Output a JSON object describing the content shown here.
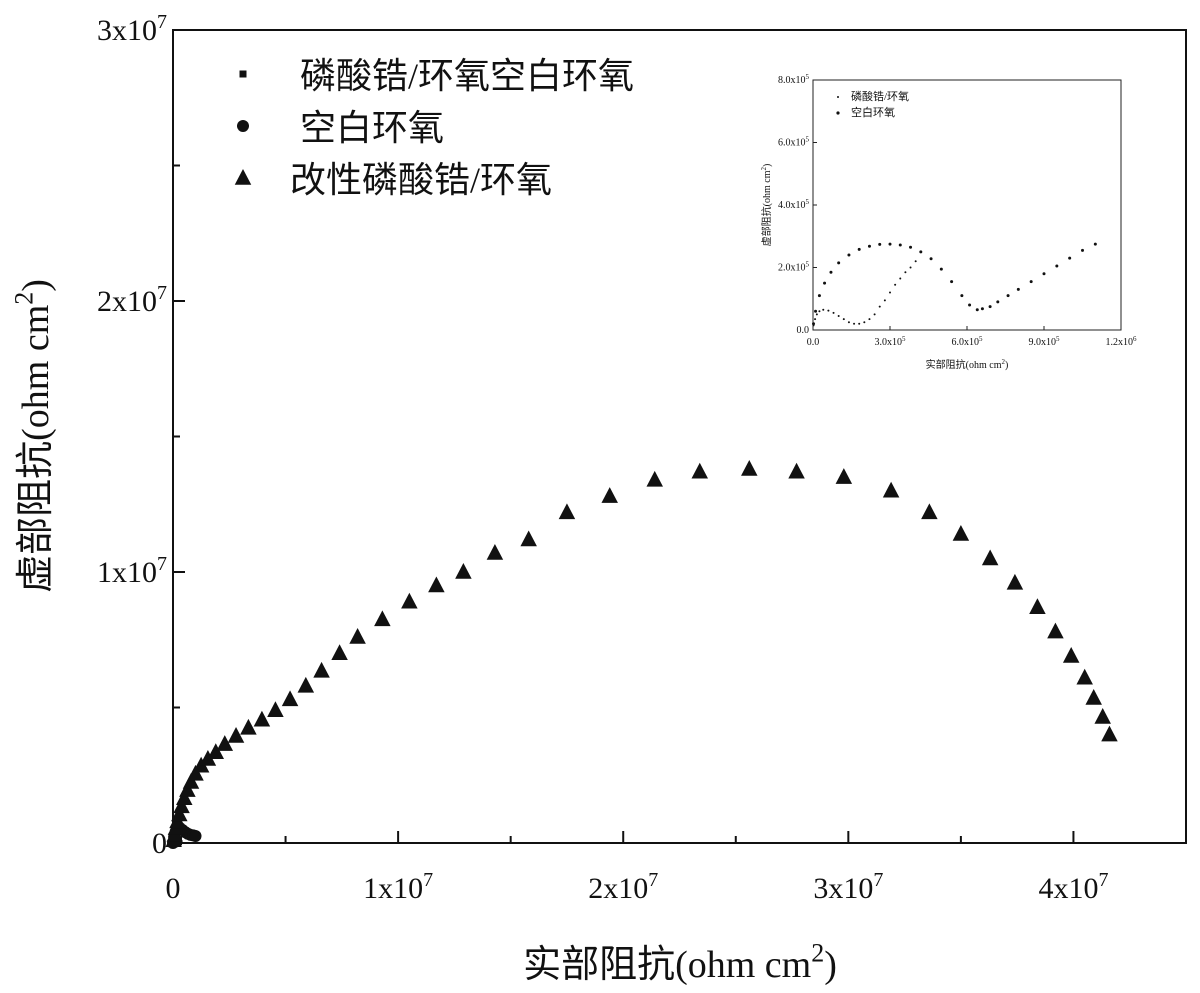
{
  "chart_data": [
    {
      "type": "scatter",
      "title": "",
      "xlabel": "实部阻抗(ohm cm2)",
      "ylabel": "虚部阻抗(ohm cm2)",
      "xlim": [
        0,
        45000000
      ],
      "ylim": [
        0,
        30000000
      ],
      "x_ticks": [
        0,
        10000000,
        20000000,
        30000000,
        40000000
      ],
      "x_tick_labels": [
        "0",
        "1x107",
        "2x107",
        "3x107",
        "4x107"
      ],
      "y_ticks": [
        0,
        10000000,
        20000000,
        30000000
      ],
      "y_tick_labels": [
        "0",
        "1x107",
        "2x107",
        "3x107"
      ],
      "grid": false,
      "legend_position": "top-left",
      "series": [
        {
          "name": "磷酸锆/环氧空白环氧",
          "marker": "square",
          "x": [
            0,
            20000,
            50000,
            100000,
            150000,
            200000
          ],
          "y": [
            0,
            100000,
            150000,
            150000,
            100000,
            80000
          ]
        },
        {
          "name": "空白环氧",
          "marker": "circle",
          "x": [
            0,
            50000,
            120000,
            200000,
            300000,
            420000,
            540000,
            660000,
            780000,
            900000,
            1000000
          ],
          "y": [
            0,
            220000,
            420000,
            560000,
            560000,
            480000,
            400000,
            340000,
            300000,
            280000,
            260000
          ]
        },
        {
          "name": "改性磷酸锆/环氧",
          "marker": "triangle",
          "x": [
            30000,
            80000,
            130000,
            200000,
            280000,
            380000,
            500000,
            640000,
            800000,
            1000000,
            1250000,
            1550000,
            1900000,
            2300000,
            2800000,
            3350000,
            3950000,
            4550000,
            5200000,
            5900000,
            6600000,
            7400000,
            8200000,
            9300000,
            10500000,
            11700000,
            12900000,
            14300000,
            15800000,
            17500000,
            19400000,
            21400000,
            23400000,
            25600000,
            27700000,
            29800000,
            31900000,
            33600000,
            35000000,
            36300000,
            37400000,
            38400000,
            39200000,
            39900000,
            40500000,
            40900000,
            41300000,
            41600000
          ],
          "y": [
            100000,
            300000,
            550000,
            800000,
            1050000,
            1350000,
            1650000,
            1950000,
            2250000,
            2550000,
            2850000,
            3100000,
            3350000,
            3650000,
            3950000,
            4250000,
            4550000,
            4900000,
            5300000,
            5800000,
            6350000,
            7000000,
            7600000,
            8250000,
            8900000,
            9500000,
            10000000,
            10700000,
            11200000,
            12200000,
            12800000,
            13400000,
            13700000,
            13800000,
            13700000,
            13500000,
            13000000,
            12200000,
            11400000,
            10500000,
            9600000,
            8700000,
            7800000,
            6900000,
            6100000,
            5350000,
            4650000,
            4000000
          ]
        }
      ]
    },
    {
      "type": "scatter",
      "title": "",
      "xlabel": "实部阻抗(ohm cm2)",
      "ylabel": "虚部阻抗(ohm cm2)",
      "xlim": [
        0,
        1200000
      ],
      "ylim": [
        0,
        800000
      ],
      "x_ticks": [
        0,
        300000,
        600000,
        900000,
        1200000
      ],
      "x_tick_labels": [
        "0.0",
        "3.0x105",
        "6.0x105",
        "9.0x105",
        "1.2x106"
      ],
      "y_ticks": [
        0,
        200000,
        400000,
        600000,
        800000
      ],
      "y_tick_labels": [
        "0.0",
        "2.0x105",
        "4.0x105",
        "6.0x105",
        "8.0x105"
      ],
      "grid": false,
      "legend_position": "top-left",
      "series": [
        {
          "name": "磷酸锆/环氧",
          "marker": "dot",
          "x": [
            2000,
            8000,
            15000,
            25000,
            40000,
            60000,
            80000,
            100000,
            120000,
            140000,
            160000,
            180000,
            200000,
            220000,
            240000,
            260000,
            280000,
            300000,
            320000,
            340000,
            360000,
            380000,
            400000
          ],
          "y": [
            15000,
            35000,
            50000,
            60000,
            65000,
            62000,
            55000,
            45000,
            35000,
            25000,
            20000,
            20000,
            25000,
            35000,
            50000,
            75000,
            95000,
            120000,
            145000,
            165000,
            185000,
            200000,
            220000
          ]
        },
        {
          "name": "空白环氧",
          "marker": "dot",
          "x": [
            2000,
            10000,
            25000,
            45000,
            70000,
            100000,
            140000,
            180000,
            220000,
            260000,
            300000,
            340000,
            380000,
            420000,
            460000,
            500000,
            540000,
            580000,
            610000,
            640000,
            660000,
            690000,
            720000,
            760000,
            800000,
            850000,
            900000,
            950000,
            1000000,
            1050000,
            1100000
          ],
          "y": [
            20000,
            60000,
            110000,
            150000,
            185000,
            215000,
            240000,
            258000,
            268000,
            274000,
            275000,
            272000,
            265000,
            250000,
            228000,
            195000,
            155000,
            110000,
            80000,
            65000,
            68000,
            75000,
            90000,
            110000,
            130000,
            155000,
            180000,
            205000,
            230000,
            255000,
            275000
          ]
        }
      ]
    }
  ]
}
